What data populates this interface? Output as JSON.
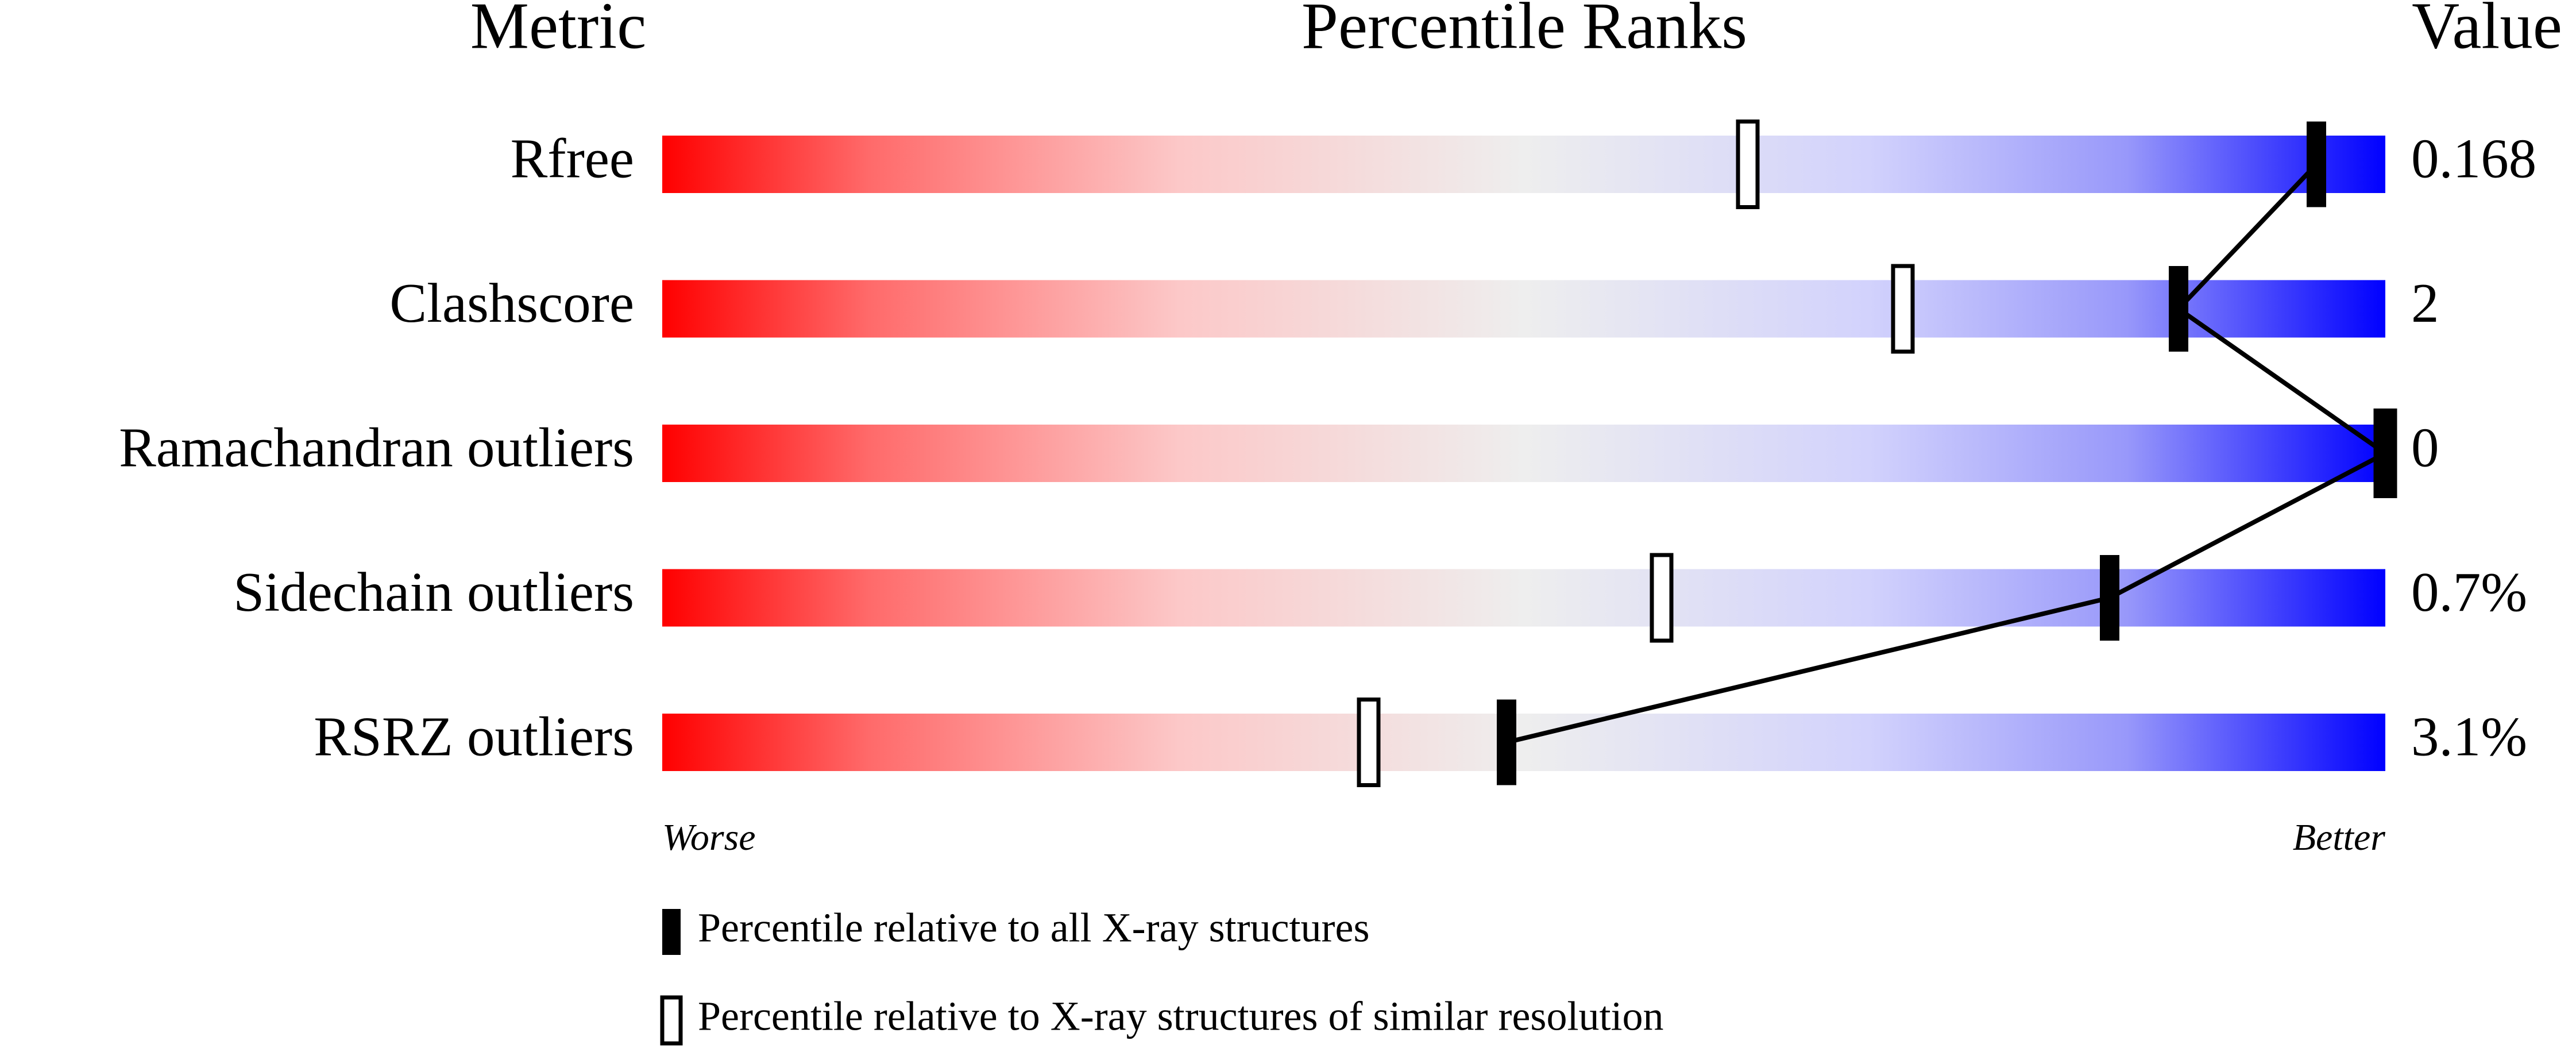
{
  "chart_data": {
    "type": "percentile-slider",
    "column_headers": [
      "Metric",
      "Percentile Ranks",
      "Value"
    ],
    "categories": [
      "Rfree",
      "Clashscore",
      "Ramachandran outliers",
      "Sidechain outliers",
      "RSRZ outliers"
    ],
    "value_labels": [
      "0.168",
      "2",
      "0",
      "0.7%",
      "3.1%"
    ],
    "xlim": [
      0,
      100
    ],
    "scale_labels": [
      "Worse",
      "Better"
    ],
    "series": [
      {
        "name": "Percentile relative to X-ray structures of similar resolution",
        "marker": "hollow",
        "color": "#000000",
        "values": [
          63,
          72,
          100,
          58,
          41
        ]
      },
      {
        "name": "Percentile relative to all X-ray structures",
        "marker": "solid",
        "color": "#000000",
        "values": [
          96,
          88,
          100,
          84,
          49
        ]
      }
    ]
  }
}
